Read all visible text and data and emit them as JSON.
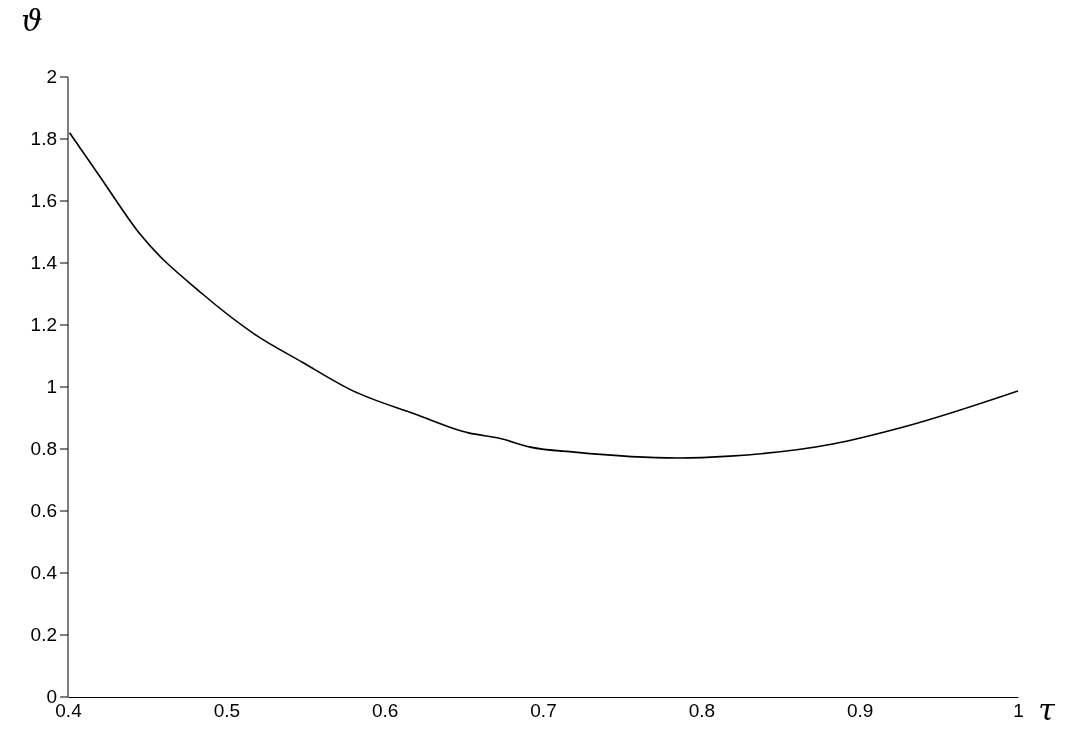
{
  "chart_data": {
    "type": "line",
    "xlabel": "τ",
    "ylabel": "ϑ",
    "series": [
      {
        "color": "#000000",
        "x": [
          0.401,
          0.42,
          0.446,
          0.485,
          0.518,
          0.548,
          0.579,
          0.619,
          0.653,
          0.673,
          0.692,
          0.72,
          0.785,
          0.818,
          0.883,
          0.93,
          1.0
        ],
        "values": [
          1.82,
          1.68,
          1.49,
          1.3,
          1.17,
          1.08,
          0.99,
          0.913,
          0.852,
          0.834,
          0.806,
          0.79,
          0.771,
          0.777,
          0.816,
          0.874,
          0.987
        ]
      }
    ],
    "xlim": [
      0.4,
      1.0
    ],
    "ylim": [
      0,
      2
    ],
    "xticks": [
      0.4,
      0.5,
      0.6,
      0.7,
      0.8,
      0.9,
      {
        "value": 1.0,
        "label": "1"
      }
    ],
    "yticks": [
      0,
      0.2,
      0.4,
      0.6,
      0.8,
      {
        "value": 1.0,
        "label": "1"
      },
      1.2,
      1.4,
      1.6,
      1.8,
      {
        "value": 2.0,
        "label": "2"
      }
    ],
    "grid": false,
    "legend": false,
    "marker": "none",
    "line_style": "solid"
  }
}
